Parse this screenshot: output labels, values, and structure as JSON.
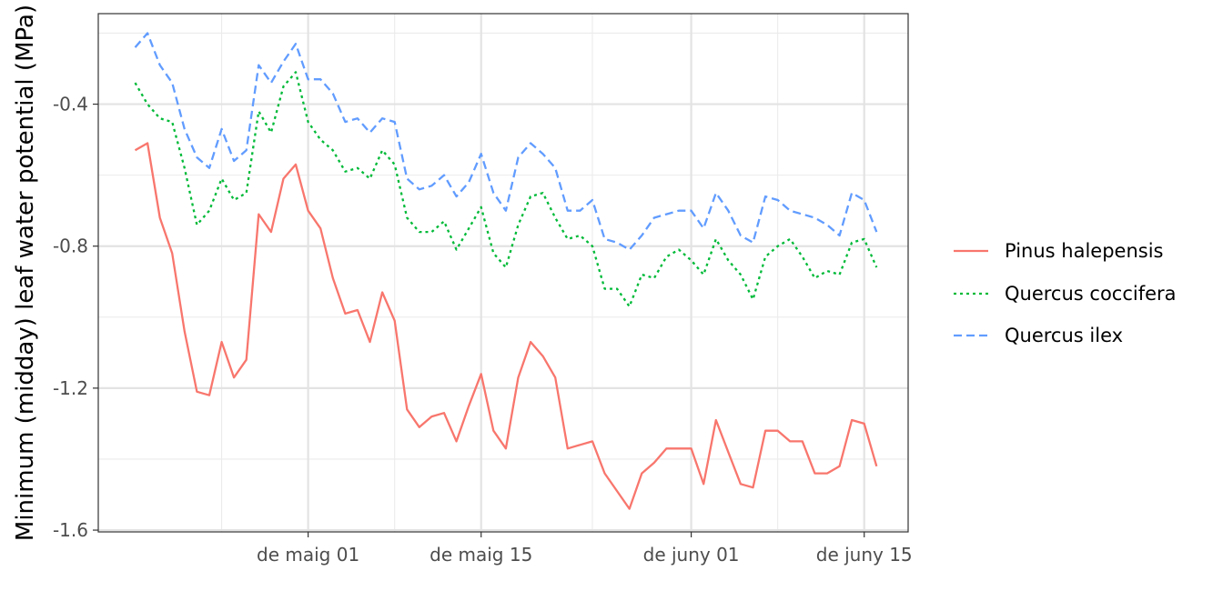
{
  "chart_data": {
    "type": "line",
    "title": "",
    "xlabel": "",
    "ylabel": "Minimum (midday) leaf water potential (MPa)",
    "x_start": "2023-04-17",
    "ylim": [
      -1.605,
      -0.145
    ],
    "y_major_ticks": [
      -1.6,
      -1.2,
      -0.8,
      -0.4
    ],
    "y_tick_labels": [
      "-1.6",
      "-1.2",
      "-0.8",
      "-0.4"
    ],
    "y_minor_ticks": [
      -1.4,
      -1.0,
      -0.6,
      -0.2
    ],
    "x_tick_labels": [
      "de maig 01",
      "de maig 15",
      "de juny 01",
      "de juny 15"
    ],
    "x_major_days": [
      14,
      28,
      45,
      59
    ],
    "x_minor_days": [
      7,
      21,
      37,
      52
    ],
    "grid": true,
    "legend_position": "right",
    "series": [
      {
        "name": "Pinus halepensis",
        "color": "#F8766D",
        "dash": "solid",
        "values": [
          -0.53,
          -0.51,
          -0.72,
          -0.82,
          -1.04,
          -1.21,
          -1.22,
          -1.07,
          -1.17,
          -1.12,
          -0.71,
          -0.76,
          -0.61,
          -0.57,
          -0.7,
          -0.75,
          -0.89,
          -0.99,
          -0.98,
          -1.07,
          -0.93,
          -1.01,
          -1.26,
          -1.31,
          -1.28,
          -1.27,
          -1.35,
          -1.25,
          -1.16,
          -1.32,
          -1.37,
          -1.17,
          -1.07,
          -1.11,
          -1.17,
          -1.37,
          -1.36,
          -1.35,
          -1.44,
          -1.49,
          -1.54,
          -1.44,
          -1.41,
          -1.37,
          -1.37,
          -1.37,
          -1.47,
          -1.29,
          -1.38,
          -1.47,
          -1.48,
          -1.32,
          -1.32,
          -1.35,
          -1.35,
          -1.44,
          -1.44,
          -1.42,
          -1.29,
          -1.3,
          -1.42
        ]
      },
      {
        "name": "Quercus coccifera",
        "color": "#00BA38",
        "dash": "dotted",
        "values": [
          -0.34,
          -0.4,
          -0.44,
          -0.45,
          -0.58,
          -0.74,
          -0.7,
          -0.61,
          -0.67,
          -0.65,
          -0.42,
          -0.48,
          -0.35,
          -0.31,
          -0.45,
          -0.5,
          -0.53,
          -0.59,
          -0.58,
          -0.61,
          -0.53,
          -0.57,
          -0.72,
          -0.76,
          -0.76,
          -0.73,
          -0.81,
          -0.75,
          -0.69,
          -0.82,
          -0.86,
          -0.74,
          -0.66,
          -0.65,
          -0.72,
          -0.78,
          -0.77,
          -0.8,
          -0.92,
          -0.92,
          -0.97,
          -0.88,
          -0.89,
          -0.83,
          -0.81,
          -0.84,
          -0.88,
          -0.78,
          -0.84,
          -0.88,
          -0.95,
          -0.83,
          -0.8,
          -0.78,
          -0.83,
          -0.89,
          -0.87,
          -0.88,
          -0.79,
          -0.78,
          -0.86
        ]
      },
      {
        "name": "Quercus ilex",
        "color": "#619CFF",
        "dash": "dashed",
        "values": [
          -0.24,
          -0.2,
          -0.29,
          -0.34,
          -0.47,
          -0.55,
          -0.58,
          -0.47,
          -0.56,
          -0.53,
          -0.29,
          -0.34,
          -0.28,
          -0.23,
          -0.33,
          -0.33,
          -0.37,
          -0.45,
          -0.44,
          -0.48,
          -0.44,
          -0.45,
          -0.61,
          -0.64,
          -0.63,
          -0.6,
          -0.66,
          -0.62,
          -0.54,
          -0.65,
          -0.7,
          -0.55,
          -0.51,
          -0.54,
          -0.58,
          -0.7,
          -0.7,
          -0.67,
          -0.78,
          -0.79,
          -0.81,
          -0.77,
          -0.72,
          -0.71,
          -0.7,
          -0.7,
          -0.75,
          -0.65,
          -0.7,
          -0.77,
          -0.79,
          -0.66,
          -0.67,
          -0.7,
          -0.71,
          -0.72,
          -0.74,
          -0.77,
          -0.65,
          -0.67,
          -0.76
        ]
      }
    ]
  }
}
